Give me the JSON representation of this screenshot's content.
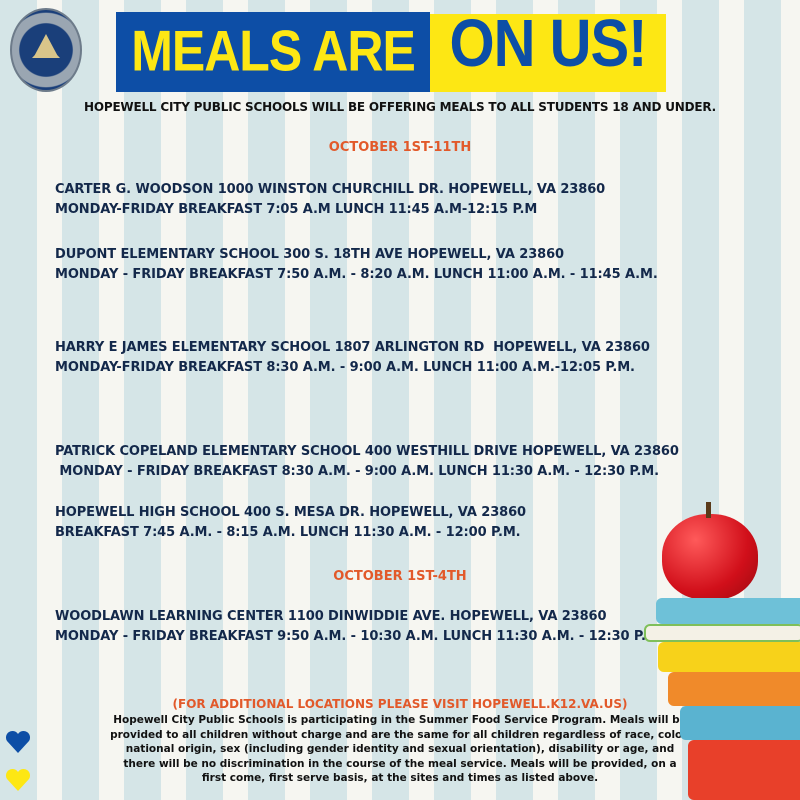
{
  "logo": {
    "text": "HOPEWELL CITY PUBLIC SCHOOLS VIRGINIA"
  },
  "header": {
    "title_part1": "MEALS ARE",
    "title_part2": "ON US!",
    "subtitle": "HOPEWELL CITY PUBLIC SCHOOLS WILL BE OFFERING MEALS TO ALL STUDENTS 18 AND UNDER."
  },
  "sections": [
    {
      "date": "OCTOBER 1ST-11TH",
      "entries": [
        {
          "address": "CARTER G. WOODSON 1000 WINSTON CHURCHILL DR. HOPEWELL, VA 23860",
          "hours": "MONDAY-FRIDAY BREAKFAST 7:05 A.M LUNCH 11:45 A.M-12:15 P.M"
        },
        {
          "address": "DUPONT ELEMENTARY SCHOOL 300 S. 18TH AVE HOPEWELL, VA 23860",
          "hours": "MONDAY - FRIDAY BREAKFAST 7:50 A.M. - 8:20 A.M. LUNCH 11:00 A.M. - 11:45 A.M."
        },
        {
          "address": "HARRY E JAMES ELEMENTARY SCHOOL 1807 ARLINGTON RD  HOPEWELL, VA 23860",
          "hours": "MONDAY-FRIDAY BREAKFAST 8:30 A.M. - 9:00 A.M. LUNCH 11:00 A.M.-12:05 P.M."
        },
        {
          "address": "PATRICK COPELAND ELEMENTARY SCHOOL 400 WESTHILL DRIVE HOPEWELL, VA 23860",
          "hours": " MONDAY - FRIDAY BREAKFAST 8:30 A.M. - 9:00 A.M. LUNCH 11:30 A.M. - 12:30 P.M."
        },
        {
          "address": "HOPEWELL HIGH SCHOOL 400 S. MESA DR. HOPEWELL, VA 23860",
          "hours": "BREAKFAST 7:45 A.M. - 8:15 A.M. LUNCH 11:30 A.M. - 12:00 P.M."
        }
      ]
    },
    {
      "date": "OCTOBER 1ST-4TH",
      "entries": [
        {
          "address": "WOODLAWN LEARNING CENTER 1100 DINWIDDIE AVE. HOPEWELL, VA 23860",
          "hours": "MONDAY - FRIDAY BREAKFAST 9:50 A.M. - 10:30 A.M. LUNCH 11:30 A.M. - 12:30 P.M."
        }
      ]
    }
  ],
  "footer": {
    "heading": "(FOR ADDITIONAL LOCATIONS PLEASE VISIT HOPEWELL.K12.VA.US)",
    "body": "Hopewell City Public Schools is participating in the Summer Food Service Program. Meals will be provided to all children without charge and are the same for all children regardless of race, color, national origin, sex (including gender identity and sexual orientation), disability or age, and there will be no discrimination in the course of the meal service. Meals will be provided, on a first come, first serve basis, at the sites and times as listed above."
  },
  "colors": {
    "blue": "#0d4ea6",
    "yellow": "#fde714",
    "orange": "#e2592a",
    "navy": "#13284a"
  }
}
